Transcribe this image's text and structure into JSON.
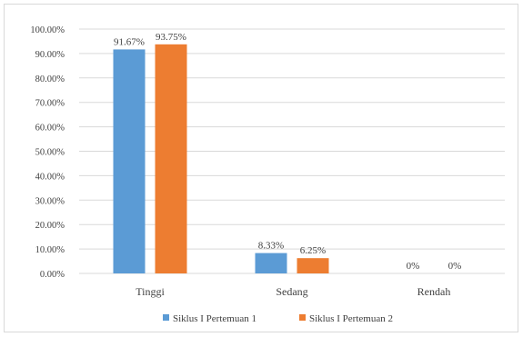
{
  "chart_data": {
    "type": "bar",
    "title": "",
    "xlabel": "",
    "ylabel": "",
    "categories": [
      "Tinggi",
      "Sedang",
      "Rendah"
    ],
    "series": [
      {
        "name": "Siklus I Pertemuan 1",
        "values": [
          91.67,
          8.33,
          0
        ],
        "labels": [
          "91.67%",
          "8.33%",
          "0%"
        ],
        "color": "#5b9bd5"
      },
      {
        "name": "Siklus I Pertemuan 2",
        "values": [
          93.75,
          6.25,
          0
        ],
        "labels": [
          "93.75%",
          "6.25%",
          "0%"
        ],
        "color": "#ed7d31"
      }
    ],
    "ylim": [
      0,
      100
    ],
    "ytick_values": [
      0,
      10,
      20,
      30,
      40,
      50,
      60,
      70,
      80,
      90,
      100
    ],
    "ytick_labels": [
      "0.00%",
      "10.00%",
      "20.00%",
      "30.00%",
      "40.00%",
      "50.00%",
      "60.00%",
      "70.00%",
      "80.00%",
      "90.00%",
      "100.00%"
    ],
    "grid": true,
    "gridline_color": "#d9d9d9",
    "legend_position": "bottom"
  }
}
